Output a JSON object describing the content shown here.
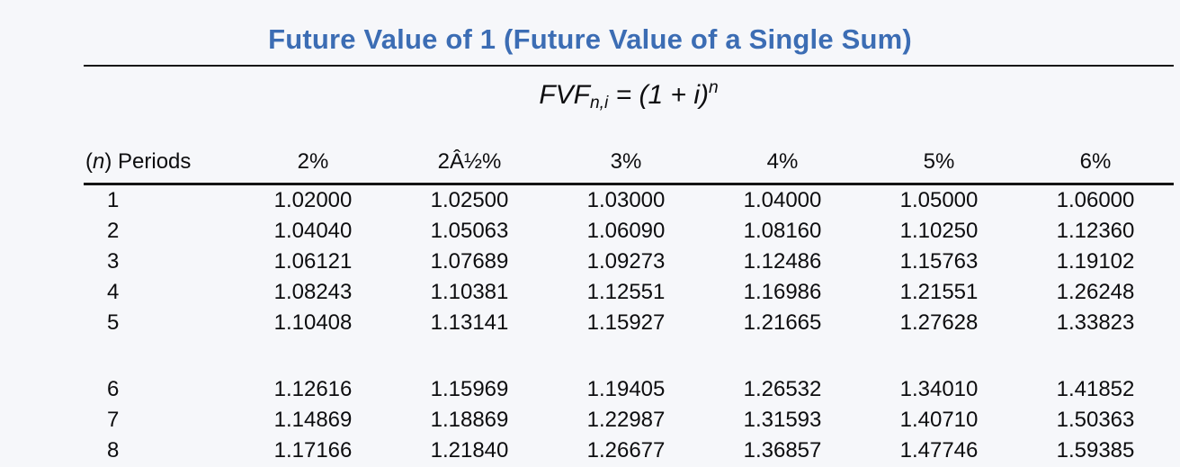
{
  "page": {
    "background_color": "#f6f7fa",
    "title_color": "#3c6db4",
    "rule_color": "#141414"
  },
  "title": "Future Value of 1 (Future Value of a Single Sum)",
  "formula": {
    "base": "FVF",
    "subscript": "n,i",
    "equals_part": " = (1 + i)",
    "exponent": "n"
  },
  "table": {
    "periods_header": {
      "paren_open": "(",
      "n_italic": "n",
      "rest": ") Periods"
    },
    "rate_headers": [
      "2%",
      "2Â½%",
      "3%",
      "4%",
      "5%",
      "6%"
    ],
    "rows": [
      {
        "period": "1",
        "values": [
          "1.02000",
          "1.02500",
          "1.03000",
          "1.04000",
          "1.05000",
          "1.06000"
        ]
      },
      {
        "period": "2",
        "values": [
          "1.04040",
          "1.05063",
          "1.06090",
          "1.08160",
          "1.10250",
          "1.12360"
        ]
      },
      {
        "period": "3",
        "values": [
          "1.06121",
          "1.07689",
          "1.09273",
          "1.12486",
          "1.15763",
          "1.19102"
        ]
      },
      {
        "period": "4",
        "values": [
          "1.08243",
          "1.10381",
          "1.12551",
          "1.16986",
          "1.21551",
          "1.26248"
        ]
      },
      {
        "period": "5",
        "values": [
          "1.10408",
          "1.13141",
          "1.15927",
          "1.21665",
          "1.27628",
          "1.33823"
        ]
      },
      {
        "period": "6",
        "values": [
          "1.12616",
          "1.15969",
          "1.19405",
          "1.26532",
          "1.34010",
          "1.41852"
        ]
      },
      {
        "period": "7",
        "values": [
          "1.14869",
          "1.18869",
          "1.22987",
          "1.31593",
          "1.40710",
          "1.50363"
        ]
      },
      {
        "period": "8",
        "values": [
          "1.17166",
          "1.21840",
          "1.26677",
          "1.36857",
          "1.47746",
          "1.59385"
        ]
      }
    ]
  }
}
